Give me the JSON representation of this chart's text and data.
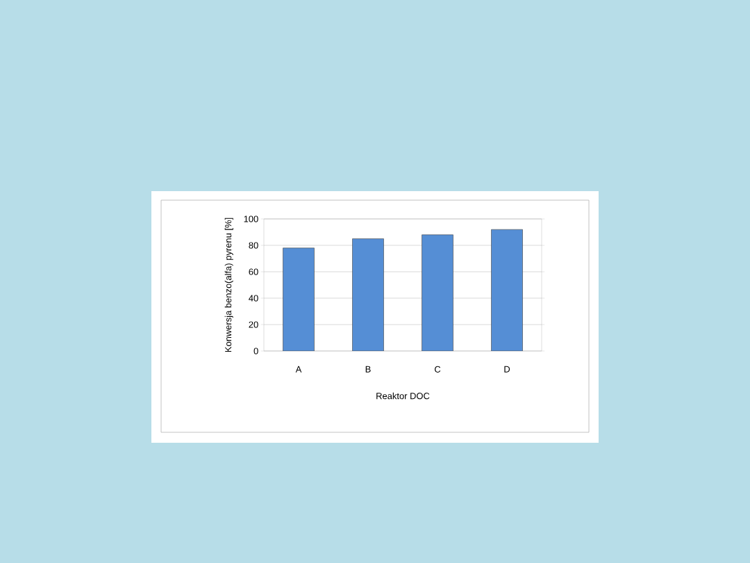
{
  "chart_data": {
    "type": "bar",
    "categories": [
      "A",
      "B",
      "C",
      "D"
    ],
    "values": [
      78,
      85,
      88,
      92
    ],
    "color": "#558ed5",
    "xlabel": "Reaktor DOC",
    "ylabel": "Konwersja benzo(alfa) pyrenu [%]",
    "ylim": [
      0,
      100
    ],
    "yticks": [
      0,
      20,
      40,
      60,
      80,
      100
    ],
    "grid": "y"
  }
}
